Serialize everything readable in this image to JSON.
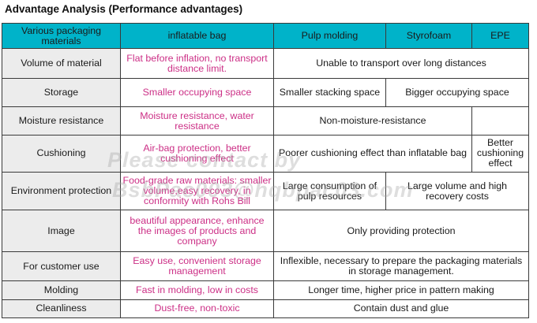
{
  "title": "Advantage Analysis (Performance advantages)",
  "header": {
    "col0": "Various packaging materials",
    "col1": "inflatable bag",
    "col2": "Pulp molding",
    "col3": "Styrofoam",
    "col4": "EPE"
  },
  "rows": {
    "volume": {
      "label": "Volume of material",
      "bag": "Flat before inflation, no transport distance limit.",
      "others": "Unable to transport over long distances"
    },
    "storage": {
      "label": "Storage",
      "bag": "Smaller occupying space",
      "pulp": "Smaller stacking space",
      "foam_epe": "Bigger occupying space"
    },
    "moisture": {
      "label": "Moisture resistance",
      "bag": "Moisture resistance, water resistance",
      "pulp_foam": "Non-moisture-resistance",
      "epe": ""
    },
    "cushioning": {
      "label": "Cushioning",
      "bag": "Air-bag protection, better cushioning effect",
      "pulp_foam": "Poorer cushioning effect than inflatable bag",
      "epe": "Better cushioning effect"
    },
    "environment": {
      "label": "Environment protection",
      "bag": "Food-grade raw materials: smaller volume,easy recovery, in conformity with Rohs Bill",
      "pulp": "Large consumption of pulp resources",
      "foam_epe": "Large volume and high recovery costs"
    },
    "image": {
      "label": "Image",
      "bag": "beautiful appearance, enhance the images of products and company",
      "others": "Only providing protection"
    },
    "customer": {
      "label": "For customer use",
      "bag": "Easy use, convenient storage management",
      "others": "Inflexible, necessary to prepare the packaging materials in storage management."
    },
    "molding": {
      "label": "Molding",
      "bag": "Fast in molding, low in costs",
      "others": "Longer time, higher price in pattern making"
    },
    "cleanliness": {
      "label": "Cleanliness",
      "bag": "Dust-free, non-toxic",
      "others": "Contain dust and glue"
    }
  },
  "watermark": {
    "line1": "Please contact by",
    "line2": "BsbPac003@hqbpac03.com"
  },
  "colors": {
    "header_bg": "#00b3c9",
    "label_bg": "#ececec",
    "bag_text": "#cc2f86"
  }
}
